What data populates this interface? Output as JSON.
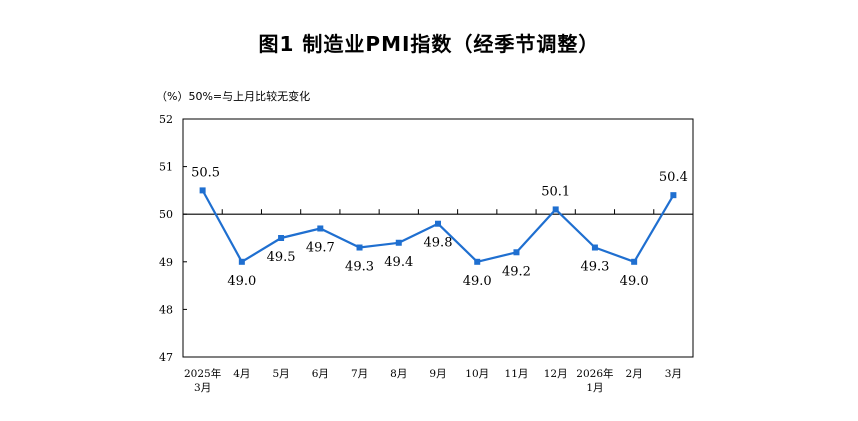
{
  "title": "图1  制造业PMI指数（经季节调整）",
  "unit_note": "（%）50%=与上月比较无变化",
  "chart_data": {
    "type": "line",
    "title": "图1  制造业PMI指数（经季节调整）",
    "ylabel": "（%）",
    "note": "50%=与上月比较无变化",
    "categories": [
      [
        "2025年",
        "3月"
      ],
      [
        "4月"
      ],
      [
        "5月"
      ],
      [
        "6月"
      ],
      [
        "7月"
      ],
      [
        "8月"
      ],
      [
        "9月"
      ],
      [
        "10月"
      ],
      [
        "11月"
      ],
      [
        "12月"
      ],
      [
        "2026年",
        "1月"
      ],
      [
        "2月"
      ],
      [
        "3月"
      ]
    ],
    "values": [
      50.5,
      49.0,
      49.5,
      49.7,
      49.3,
      49.4,
      49.8,
      49.0,
      49.2,
      50.1,
      49.3,
      49.0,
      50.4
    ],
    "data_labels": [
      "50.5",
      "49.0",
      "49.5",
      "49.7",
      "49.3",
      "49.4",
      "49.8",
      "49.0",
      "49.2",
      "50.1",
      "49.3",
      "49.0",
      "50.4"
    ],
    "label_position": [
      "above",
      "below",
      "below",
      "below",
      "below",
      "below",
      "below",
      "below",
      "below",
      "above",
      "below",
      "below",
      "above"
    ],
    "ylim": [
      47,
      52
    ],
    "yticks": [
      "47",
      "48",
      "49",
      "50",
      "51",
      "52"
    ],
    "reference_line": 50,
    "grid": false,
    "series_color": "#1f6fd0",
    "reference_color": "#000000"
  }
}
